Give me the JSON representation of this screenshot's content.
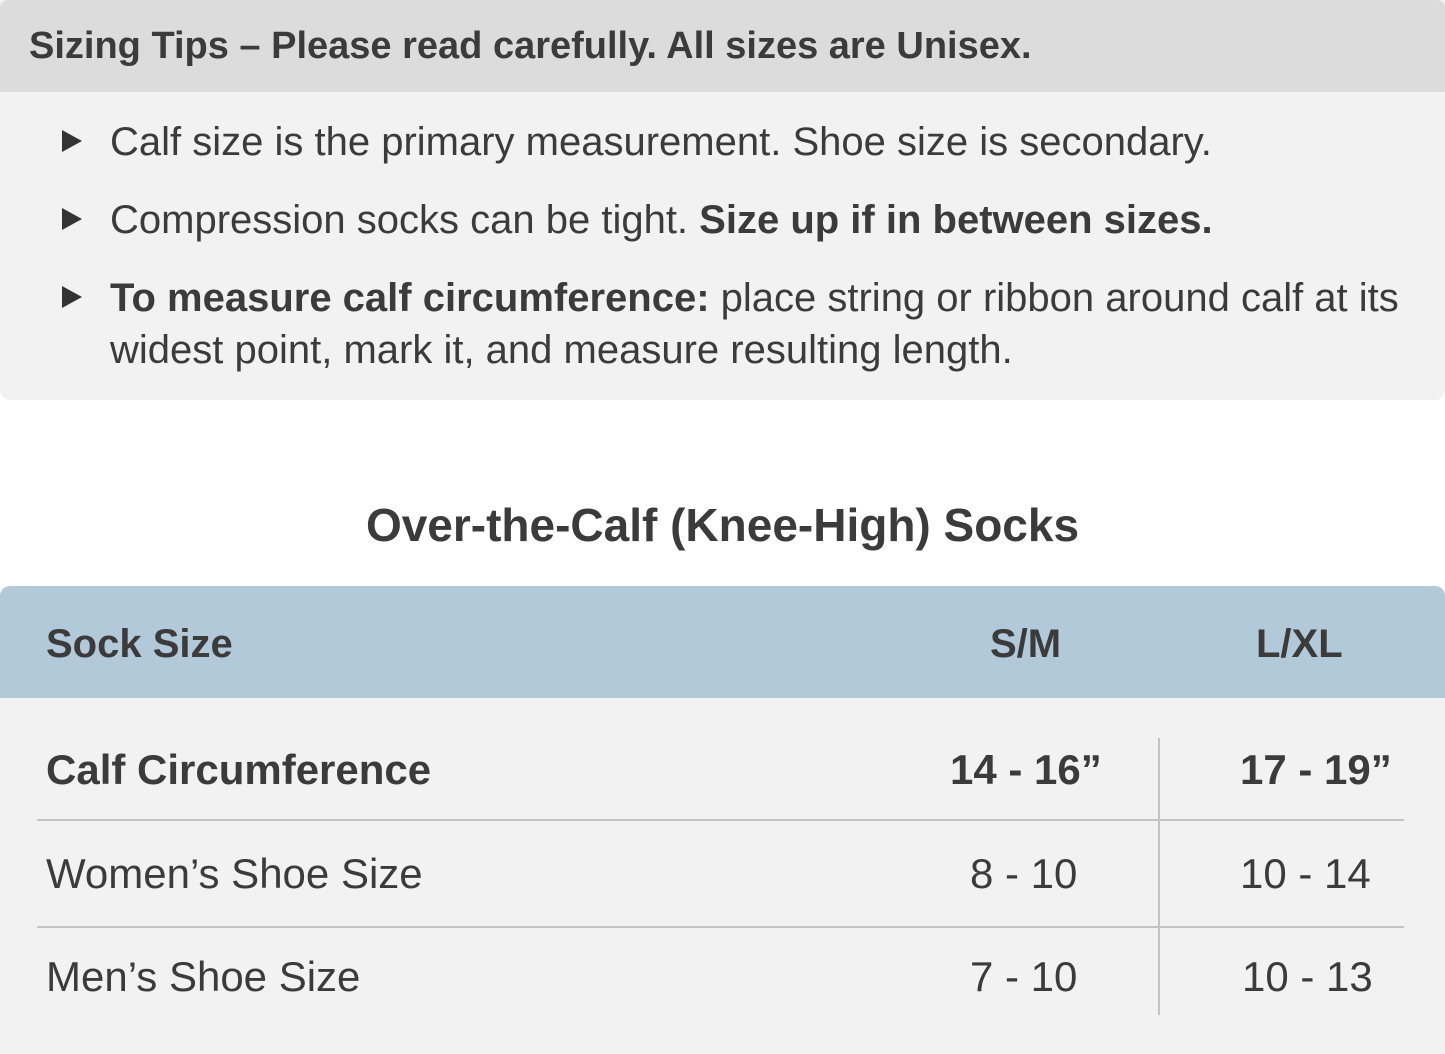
{
  "tips": {
    "heading": "Sizing Tips – Please read carefully. All sizes are Unisex.",
    "items": [
      {
        "bold": "",
        "text": "Calf size is the primary measurement. Shoe size is secondary.",
        "bold_after": ""
      },
      {
        "bold": "",
        "text": "Compression socks can be tight. ",
        "bold_after": "Size up if in between sizes."
      },
      {
        "bold": "To measure calf circumference:",
        "text": " place string or ribbon around calf at its widest point, mark it, and measure resulting length.",
        "bold_after": ""
      }
    ],
    "bullet_icon": "triangle-right-icon"
  },
  "section_title": "Over-the-Calf (Knee-High) Socks",
  "table": {
    "header": {
      "label": "Sock Size",
      "cols": [
        "S/M",
        "L/XL"
      ]
    },
    "header_color": "#b1c9d9",
    "rows": [
      {
        "label": "Calf Circumference",
        "values": [
          "14 - 16”",
          "17 - 19”"
        ]
      },
      {
        "label": "Women’s Shoe Size",
        "values": [
          "8 - 10",
          "10 - 14"
        ]
      },
      {
        "label": "Men’s Shoe Size",
        "values": [
          "7 - 10",
          "10 - 13"
        ]
      }
    ]
  }
}
